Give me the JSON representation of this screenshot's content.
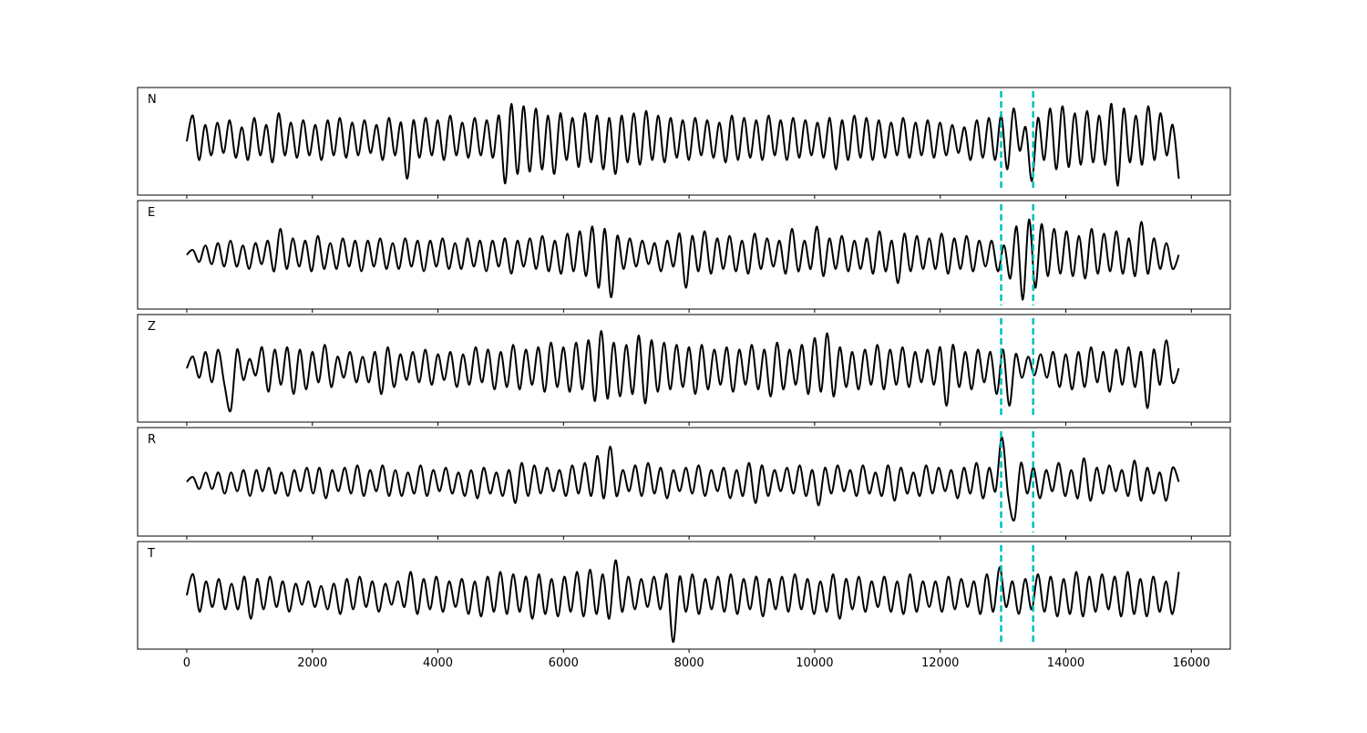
{
  "chart_data": {
    "type": "line",
    "title": "",
    "xlabel": "",
    "ylabel": "",
    "xlim": [
      -783,
      16620
    ],
    "ylim": [
      -115,
      115
    ],
    "x_range": [
      0,
      15800
    ],
    "xticks": [
      0,
      2000,
      4000,
      6000,
      8000,
      10000,
      12000,
      14000,
      16000
    ],
    "xtick_labels": [
      "0",
      "2000",
      "4000",
      "6000",
      "8000",
      "10000",
      "12000",
      "14000",
      "16000"
    ],
    "grid": false,
    "line_color": "#000000",
    "marker_color": "#00bfbf",
    "markers": [
      12970,
      13480
    ],
    "series": [
      {
        "name": "N",
        "values": [
          0,
          55,
          -40,
          35,
          -30,
          40,
          -25,
          45,
          -35,
          30,
          -40,
          50,
          -30,
          35,
          -45,
          60,
          -30,
          40,
          -35,
          45,
          -30,
          35,
          -40,
          45,
          -30,
          50,
          -35,
          40,
          -30,
          45,
          -25,
          35,
          -40,
          50,
          -30,
          40,
          -80,
          45,
          -35,
          50,
          -30,
          45,
          -40,
          55,
          -30,
          40,
          -35,
          50,
          -30,
          45,
          -35,
          55,
          -90,
          80,
          -70,
          75,
          -65,
          70,
          -60,
          55,
          -70,
          60,
          -40,
          50,
          -55,
          60,
          -45,
          55,
          -60,
          50,
          -70,
          55,
          -45,
          60,
          -50,
          65,
          -40,
          55,
          -45,
          50,
          -35,
          45,
          -40,
          50,
          -30,
          45,
          -35,
          40,
          -45,
          55,
          -40,
          50,
          -35,
          45,
          -40,
          55,
          -30,
          45,
          -40,
          50,
          -35,
          45,
          -30,
          40,
          -35,
          50,
          -60,
          45,
          -40,
          55,
          -35,
          50,
          -40,
          45,
          -35,
          40,
          -30,
          50,
          -35,
          40,
          -30,
          45,
          -35,
          40,
          -30,
          35,
          -25,
          30,
          -40,
          45,
          -35,
          50,
          -40,
          55,
          -60,
          70,
          -20,
          30,
          -85,
          50,
          -40,
          70,
          -60,
          75,
          -55,
          60,
          -50,
          65,
          -45,
          55,
          -50,
          80,
          -95,
          70,
          -45,
          55,
          -50,
          75,
          -40,
          60,
          -30,
          35,
          -80
        ]
      },
      {
        "name": "E",
        "values": [
          0,
          10,
          -15,
          20,
          -20,
          25,
          -25,
          30,
          -25,
          20,
          -30,
          25,
          -20,
          30,
          -35,
          55,
          -30,
          35,
          -25,
          30,
          -35,
          40,
          -30,
          25,
          -30,
          35,
          -25,
          30,
          -35,
          30,
          -25,
          35,
          -30,
          25,
          -30,
          35,
          -25,
          30,
          -35,
          30,
          -25,
          35,
          -30,
          25,
          -30,
          35,
          -25,
          30,
          -35,
          30,
          -25,
          35,
          -40,
          30,
          -25,
          35,
          -30,
          40,
          -35,
          30,
          -40,
          45,
          -35,
          50,
          -45,
          60,
          -70,
          55,
          -90,
          40,
          -30,
          35,
          -25,
          30,
          -20,
          25,
          -35,
          30,
          -25,
          45,
          -70,
          40,
          -35,
          50,
          -40,
          35,
          -30,
          40,
          -35,
          30,
          -40,
          45,
          -30,
          35,
          -25,
          30,
          -40,
          55,
          -35,
          30,
          -30,
          60,
          -45,
          35,
          -30,
          40,
          -35,
          30,
          -30,
          35,
          -40,
          50,
          -35,
          30,
          -60,
          45,
          -35,
          40,
          -30,
          35,
          -30,
          45,
          -40,
          35,
          -30,
          40,
          -35,
          30,
          -25,
          30,
          -35,
          20,
          -50,
          60,
          -95,
          75,
          -70,
          65,
          -45,
          55,
          -40,
          50,
          -45,
          40,
          -50,
          55,
          -40,
          45,
          -35,
          50,
          -40,
          35,
          -45,
          70,
          -40,
          35,
          -30,
          25,
          -30,
          0
        ]
      },
      {
        "name": "Z",
        "values": [
          0,
          25,
          -20,
          35,
          -30,
          40,
          -35,
          -90,
          40,
          -25,
          20,
          -15,
          45,
          -50,
          40,
          -35,
          45,
          -55,
          40,
          -45,
          35,
          -30,
          50,
          -40,
          25,
          -20,
          35,
          -30,
          25,
          -30,
          35,
          -55,
          45,
          -40,
          30,
          -25,
          35,
          -30,
          40,
          -35,
          30,
          -25,
          35,
          -40,
          30,
          -35,
          45,
          -30,
          40,
          -45,
          35,
          -40,
          50,
          -45,
          40,
          -35,
          45,
          -50,
          55,
          -40,
          45,
          -50,
          55,
          -45,
          60,
          -70,
          80,
          -65,
          55,
          -60,
          50,
          -55,
          70,
          -75,
          60,
          -50,
          55,
          -45,
          50,
          -40,
          45,
          -55,
          50,
          -45,
          40,
          -35,
          45,
          -50,
          40,
          -35,
          50,
          -45,
          40,
          -60,
          55,
          -45,
          40,
          -35,
          50,
          -55,
          65,
          -50,
          75,
          -60,
          45,
          -40,
          35,
          -45,
          40,
          -35,
          50,
          -45,
          40,
          -35,
          45,
          -40,
          35,
          -30,
          40,
          -35,
          45,
          -80,
          50,
          -40,
          35,
          -45,
          40,
          -30,
          35,
          -55,
          40,
          -80,
          30,
          -20,
          25,
          -15,
          30,
          -20,
          35,
          -40,
          30,
          -45,
          35,
          -40,
          45,
          -30,
          35,
          -50,
          40,
          -35,
          45,
          -40,
          35,
          -85,
          40,
          -35,
          60,
          -30,
          0
        ]
      },
      {
        "name": "R",
        "values": [
          0,
          10,
          -15,
          20,
          -15,
          20,
          -25,
          20,
          -20,
          25,
          -30,
          25,
          -20,
          30,
          -25,
          20,
          -30,
          25,
          -20,
          30,
          -25,
          30,
          -35,
          25,
          -20,
          30,
          -25,
          35,
          -30,
          25,
          -20,
          35,
          -30,
          25,
          -30,
          20,
          -25,
          35,
          -30,
          25,
          -20,
          30,
          -25,
          20,
          -30,
          25,
          -35,
          30,
          -25,
          20,
          -30,
          25,
          -45,
          40,
          -30,
          35,
          -25,
          30,
          -20,
          25,
          -30,
          35,
          -25,
          40,
          -30,
          55,
          -35,
          75,
          -30,
          25,
          -20,
          35,
          -30,
          40,
          -25,
          30,
          -35,
          25,
          -20,
          30,
          -25,
          35,
          -30,
          25,
          -20,
          30,
          -35,
          25,
          -30,
          40,
          -45,
          35,
          -30,
          25,
          -20,
          30,
          -25,
          35,
          -30,
          25,
          -50,
          30,
          -25,
          35,
          -20,
          25,
          -30,
          35,
          -25,
          20,
          -30,
          35,
          -40,
          30,
          -25,
          20,
          -30,
          35,
          -25,
          30,
          -20,
          25,
          -35,
          30,
          -25,
          40,
          -35,
          30,
          -20,
          95,
          -30,
          -80,
          40,
          -25,
          30,
          -35,
          25,
          -20,
          40,
          -30,
          25,
          -35,
          50,
          -40,
          30,
          -25,
          35,
          -20,
          25,
          -30,
          45,
          -40,
          30,
          -25,
          20,
          -40,
          30,
          0
        ]
      },
      {
        "name": "T",
        "values": [
          0,
          45,
          -35,
          30,
          -25,
          35,
          -30,
          25,
          -30,
          40,
          -50,
          35,
          -30,
          40,
          -25,
          30,
          -35,
          25,
          -20,
          30,
          -25,
          20,
          -30,
          25,
          -40,
          35,
          -30,
          40,
          -25,
          30,
          -35,
          25,
          -20,
          30,
          -25,
          50,
          -40,
          35,
          -30,
          40,
          -35,
          30,
          -25,
          35,
          -40,
          30,
          -45,
          40,
          -35,
          50,
          -40,
          45,
          -35,
          40,
          -50,
          45,
          -40,
          35,
          -45,
          40,
          -35,
          50,
          -45,
          55,
          -40,
          45,
          -50,
          75,
          -35,
          40,
          -30,
          35,
          -25,
          40,
          -30,
          45,
          -100,
          40,
          -35,
          45,
          -40,
          35,
          -30,
          40,
          -35,
          45,
          -40,
          35,
          -30,
          40,
          -45,
          35,
          -30,
          40,
          -35,
          45,
          -30,
          35,
          -40,
          30,
          -35,
          45,
          -50,
          35,
          -30,
          40,
          -35,
          30,
          -25,
          40,
          -35,
          30,
          -40,
          45,
          -35,
          30,
          -25,
          30,
          -35,
          40,
          -30,
          35,
          -25,
          30,
          -40,
          45,
          -35,
          60,
          -25,
          30,
          -40,
          35,
          -30,
          45,
          -35,
          40,
          -45,
          35,
          -40,
          50,
          -45,
          40,
          -35,
          45,
          -30,
          40,
          -45,
          50,
          -40,
          35,
          -45,
          40,
          -35,
          30,
          -40,
          50
        ]
      }
    ]
  }
}
